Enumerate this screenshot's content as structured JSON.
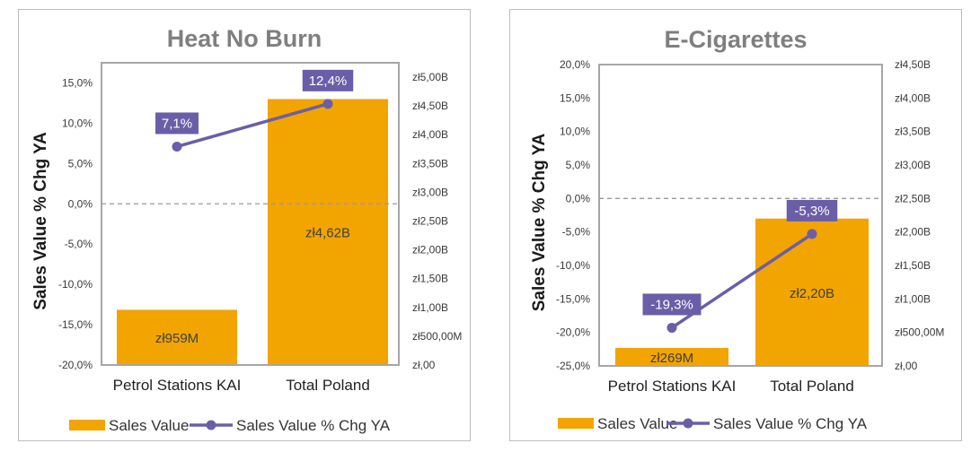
{
  "colors": {
    "bar": "#f2a400",
    "line": "#6b5ea8",
    "label_box": "#6b5ea8",
    "zero_line": "#999999",
    "plot_border": "#a6a6a6"
  },
  "chart_data": [
    {
      "type": "bar",
      "combo": "bar+line",
      "title": "Heat No Burn",
      "ylabel": "Sales Value % Chg YA",
      "categories": [
        "Petrol Stations KAI",
        "Total Poland"
      ],
      "ylim_left": [
        -20,
        17.5
      ],
      "left_ticks": [
        -20,
        -15,
        -10,
        -5,
        0,
        5,
        10,
        15
      ],
      "left_tick_labels": [
        "-20,0%",
        "-15,0%",
        "-10,0%",
        "-5,0%",
        "0,0%",
        "5,0%",
        "10,0%",
        "15,0%"
      ],
      "ylim_right": [
        0,
        5.25
      ],
      "right_ticks": [
        0,
        0.5,
        1,
        1.5,
        2,
        2.5,
        3,
        3.5,
        4,
        4.5,
        5
      ],
      "right_tick_labels": [
        "zł,00",
        "zł500,00M",
        "zł1,00B",
        "zł1,50B",
        "zł2,00B",
        "zł2,50B",
        "zł3,00B",
        "zł3,50B",
        "zł4,00B",
        "zł4,50B",
        "zł5,00B"
      ],
      "series": [
        {
          "name": "Sales Value",
          "kind": "bar",
          "axis": "right",
          "values": [
            0.959,
            4.62
          ],
          "labels": [
            "zł959M",
            "zł4,62B"
          ]
        },
        {
          "name": "Sales Value % Chg YA",
          "kind": "line",
          "axis": "left",
          "values": [
            7.1,
            12.4
          ],
          "labels": [
            "7,1%",
            "12,4%"
          ]
        }
      ],
      "legend": [
        "Sales Value",
        "Sales Value % Chg YA"
      ],
      "legend_position": "bottom"
    },
    {
      "type": "bar",
      "combo": "bar+line",
      "title": "E-Cigarettes",
      "ylabel": "Sales Value % Chg YA",
      "categories": [
        "Petrol Stations KAI",
        "Total Poland"
      ],
      "ylim_left": [
        -25,
        20
      ],
      "left_ticks": [
        -25,
        -20,
        -15,
        -10,
        -5,
        0,
        5,
        10,
        15,
        20
      ],
      "left_tick_labels": [
        "-25,0%",
        "-20,0%",
        "-15,0%",
        "-10,0%",
        "-5,0%",
        "0,0%",
        "5,0%",
        "10,0%",
        "15,0%",
        "20,0%"
      ],
      "ylim_right": [
        0,
        4.5
      ],
      "right_ticks": [
        0,
        0.5,
        1,
        1.5,
        2,
        2.5,
        3,
        3.5,
        4,
        4.5
      ],
      "right_tick_labels": [
        "zł,00",
        "zł500,00M",
        "zł1,00B",
        "zł1,50B",
        "zł2,00B",
        "zł2,50B",
        "zł3,00B",
        "zł3,50B",
        "zł4,00B",
        "zł4,50B"
      ],
      "series": [
        {
          "name": "Sales Value",
          "kind": "bar",
          "axis": "right",
          "values": [
            0.269,
            2.2
          ],
          "labels": [
            "zł269M",
            "zł2,20B"
          ]
        },
        {
          "name": "Sales Value % Chg YA",
          "kind": "line",
          "axis": "left",
          "values": [
            -19.3,
            -5.3
          ],
          "labels": [
            "-19,3%",
            "-5,3%"
          ]
        }
      ],
      "legend": [
        "Sales Value",
        "Sales Value % Chg YA"
      ],
      "legend_position": "bottom"
    }
  ]
}
